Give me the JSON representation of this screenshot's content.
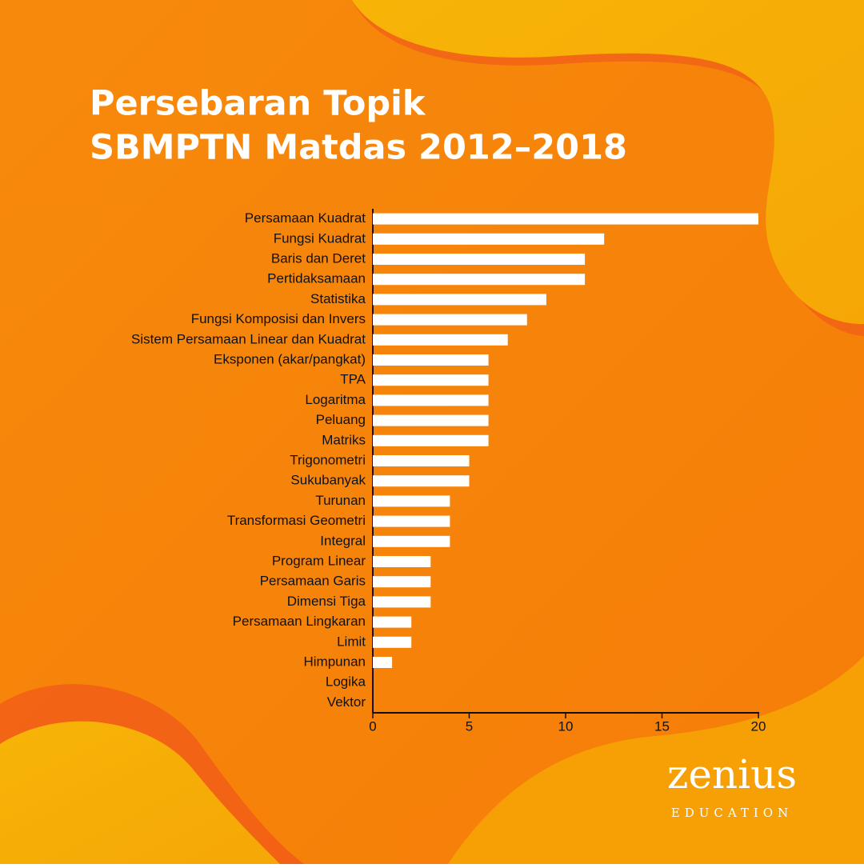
{
  "chart_data": {
    "type": "bar",
    "orientation": "horizontal",
    "title": [
      "Persebaran Topik",
      "SBMPTN Matdas 2012–2018"
    ],
    "categories": [
      "Persamaan Kuadrat",
      "Fungsi Kuadrat",
      "Baris dan Deret",
      "Pertidaksamaan",
      "Statistika",
      "Fungsi Komposisi dan Invers",
      "Sistem Persamaan Linear dan Kuadrat",
      "Eksponen (akar/pangkat)",
      "TPA",
      "Logaritma",
      "Peluang",
      "Matriks",
      "Trigonometri",
      "Sukubanyak",
      "Turunan",
      "Transformasi Geometri",
      "Integral",
      "Program Linear",
      "Persamaan Garis",
      "Dimensi Tiga",
      "Persamaan Lingkaran",
      "Limit",
      "Himpunan",
      "Logika",
      "Vektor"
    ],
    "values": [
      20,
      12,
      11,
      11,
      9,
      8,
      7,
      6,
      6,
      6,
      6,
      6,
      5,
      5,
      4,
      4,
      4,
      3,
      3,
      3,
      2,
      2,
      1,
      0,
      0
    ],
    "color": "#ffffff",
    "xlim": [
      0,
      20
    ],
    "xticks": [
      0,
      5,
      10,
      15,
      20
    ],
    "grid": false
  },
  "logo": {
    "name": "zenius",
    "tagline": "EDUCATION"
  }
}
